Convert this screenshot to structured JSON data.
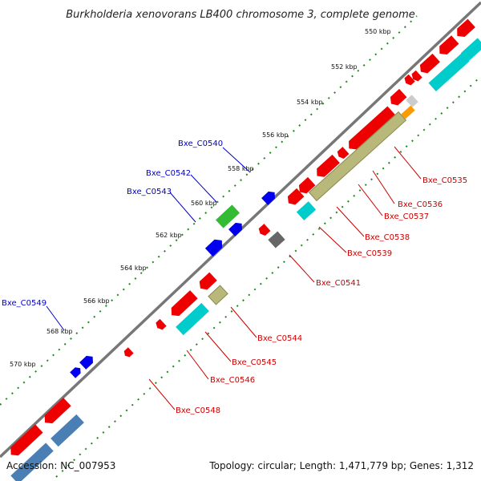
{
  "title": "Burkholderia xenovorans LB400 chromosome 3, complete genome",
  "footer": {
    "accession": "Accession: NC_007953",
    "summary": "Topology: circular; Length: 1,471,779 bp; Genes: 1,312"
  },
  "ticks": [
    "550 kbp",
    "552 kbp",
    "554 kbp",
    "556 kbp",
    "558 kbp",
    "560 kbp",
    "562 kbp",
    "564 kbp",
    "566 kbp",
    "568 kbp",
    "570 kbp"
  ],
  "labels": {
    "forward": [
      "Bxe_C0540",
      "Bxe_C0542",
      "Bxe_C0543",
      "Bxe_C0549"
    ],
    "reverse": [
      "Bxe_C0535",
      "Bxe_C0536",
      "Bxe_C0537",
      "Bxe_C0538",
      "Bxe_C0539",
      "Bxe_C0541",
      "Bxe_C0544",
      "Bxe_C0545",
      "Bxe_C0546",
      "Bxe_C0548"
    ]
  },
  "colors": {
    "forward_label": "#0000cc",
    "reverse_label": "#cc0000",
    "backbone": "#777777",
    "tick_dots": "#1a8a1a",
    "cds": "#ee0000",
    "trna": "#0000ee",
    "cog_cyan": "#00cccc",
    "cog_olive": "#b8b87a",
    "cog_steel": "#4a7fb5",
    "cog_green": "#33bb33",
    "cog_gray": "#666666",
    "cog_lightgray": "#cccccc",
    "cog_orange": "#ff9900"
  }
}
